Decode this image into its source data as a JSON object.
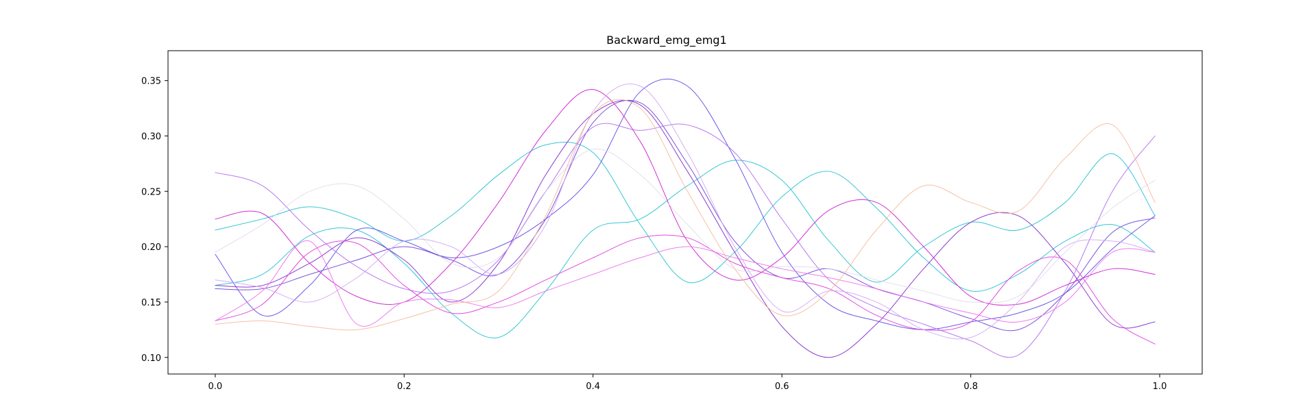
{
  "chart_data": {
    "type": "line",
    "title": "Backward_emg_emg1",
    "xlabel": "",
    "ylabel": "",
    "xlim": [
      -0.05,
      1.045
    ],
    "ylim": [
      0.085,
      0.377
    ],
    "xticks": [
      0.0,
      0.2,
      0.4,
      0.6,
      0.8,
      1.0
    ],
    "xtick_labels": [
      "0.0",
      "0.2",
      "0.4",
      "0.6",
      "0.8",
      "1.0"
    ],
    "yticks": [
      0.1,
      0.15,
      0.2,
      0.25,
      0.3,
      0.35
    ],
    "ytick_labels": [
      "0.10",
      "0.15",
      "0.20",
      "0.25",
      "0.30",
      "0.35"
    ],
    "grid": false,
    "legend": false,
    "x": [
      0.0,
      0.05,
      0.1,
      0.15,
      0.2,
      0.25,
      0.3,
      0.35,
      0.4,
      0.45,
      0.5,
      0.55,
      0.6,
      0.65,
      0.7,
      0.75,
      0.8,
      0.85,
      0.9,
      0.95,
      0.995
    ],
    "series": [
      {
        "color": "#35c6d4",
        "opacity": 1.0,
        "values": [
          0.215,
          0.225,
          0.236,
          0.225,
          0.205,
          0.228,
          0.265,
          0.292,
          0.285,
          0.22,
          0.168,
          0.195,
          0.245,
          0.268,
          0.235,
          0.19,
          0.16,
          0.175,
          0.205,
          0.22,
          0.195
        ]
      },
      {
        "color": "#35c6d4",
        "opacity": 1.0,
        "values": [
          0.165,
          0.175,
          0.21,
          0.215,
          0.185,
          0.14,
          0.118,
          0.16,
          0.215,
          0.225,
          0.255,
          0.278,
          0.26,
          0.205,
          0.168,
          0.2,
          0.222,
          0.215,
          0.24,
          0.284,
          0.228
        ]
      },
      {
        "color": "#6a5ae6",
        "opacity": 1.0,
        "values": [
          0.193,
          0.138,
          0.165,
          0.215,
          0.205,
          0.19,
          0.2,
          0.225,
          0.265,
          0.34,
          0.345,
          0.28,
          0.195,
          0.148,
          0.133,
          0.125,
          0.132,
          0.14,
          0.158,
          0.198,
          0.228
        ]
      },
      {
        "color": "#7a52d8",
        "opacity": 1.0,
        "values": [
          0.162,
          0.162,
          0.175,
          0.188,
          0.2,
          0.188,
          0.175,
          0.225,
          0.312,
          0.33,
          0.275,
          0.205,
          0.172,
          0.18,
          0.162,
          0.15,
          0.135,
          0.125,
          0.158,
          0.213,
          0.226
        ]
      },
      {
        "color": "#8a3ad0",
        "opacity": 1.0,
        "values": [
          0.165,
          0.165,
          0.185,
          0.208,
          0.188,
          0.15,
          0.185,
          0.265,
          0.32,
          0.328,
          0.268,
          0.195,
          0.128,
          0.1,
          0.13,
          0.18,
          0.222,
          0.228,
          0.185,
          0.13,
          0.132
        ]
      },
      {
        "color": "#b06af0",
        "opacity": 0.9,
        "values": [
          0.267,
          0.255,
          0.215,
          0.182,
          0.162,
          0.16,
          0.188,
          0.25,
          0.308,
          0.305,
          0.31,
          0.285,
          0.225,
          0.17,
          0.145,
          0.13,
          0.115,
          0.102,
          0.16,
          0.25,
          0.3
        ]
      },
      {
        "color": "#cf2fd3",
        "opacity": 1.0,
        "values": [
          0.225,
          0.23,
          0.185,
          0.155,
          0.15,
          0.185,
          0.24,
          0.305,
          0.342,
          0.295,
          0.205,
          0.17,
          0.19,
          0.233,
          0.24,
          0.2,
          0.155,
          0.148,
          0.165,
          0.18,
          0.175
        ]
      },
      {
        "color": "#e04be0",
        "opacity": 1.0,
        "values": [
          0.133,
          0.148,
          0.195,
          0.203,
          0.165,
          0.14,
          0.15,
          0.17,
          0.19,
          0.208,
          0.208,
          0.185,
          0.172,
          0.162,
          0.138,
          0.125,
          0.132,
          0.178,
          0.188,
          0.135,
          0.112
        ]
      },
      {
        "color": "#ec6fec",
        "opacity": 0.9,
        "values": [
          0.133,
          0.16,
          0.205,
          0.13,
          0.15,
          0.152,
          0.145,
          0.16,
          0.175,
          0.19,
          0.2,
          0.19,
          0.18,
          0.172,
          0.162,
          0.15,
          0.14,
          0.132,
          0.15,
          0.195,
          0.195
        ]
      },
      {
        "color": "#cfa0f2",
        "opacity": 0.85,
        "values": [
          0.17,
          0.163,
          0.15,
          0.172,
          0.205,
          0.2,
          0.175,
          0.22,
          0.322,
          0.345,
          0.285,
          0.2,
          0.142,
          0.16,
          0.15,
          0.125,
          0.118,
          0.15,
          0.2,
          0.205,
          0.195
        ]
      },
      {
        "color": "#f5b595",
        "opacity": 0.85,
        "values": [
          0.13,
          0.133,
          0.128,
          0.125,
          0.135,
          0.148,
          0.16,
          0.228,
          0.32,
          0.325,
          0.25,
          0.18,
          0.138,
          0.16,
          0.215,
          0.255,
          0.24,
          0.232,
          0.28,
          0.31,
          0.24
        ]
      },
      {
        "color": "#d8d0e6",
        "opacity": 0.7,
        "values": [
          0.195,
          0.22,
          0.25,
          0.255,
          0.225,
          0.185,
          0.19,
          0.25,
          0.288,
          0.265,
          0.22,
          0.18,
          0.182,
          0.18,
          0.17,
          0.16,
          0.15,
          0.155,
          0.195,
          0.235,
          0.26
        ]
      }
    ]
  }
}
